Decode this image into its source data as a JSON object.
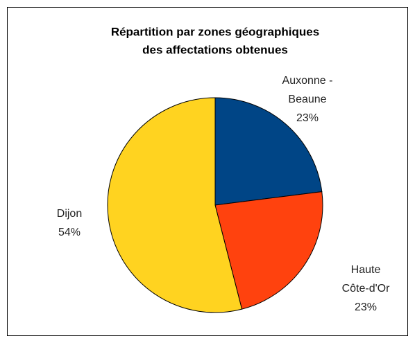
{
  "chart_data": {
    "type": "pie",
    "title": [
      "Répartition par zones géographiques",
      "des affectations obtenues"
    ],
    "categories": [
      [
        "Auxonne -",
        "Beaune"
      ],
      [
        "Haute",
        "Côte-d'Or"
      ],
      [
        "Dijon"
      ]
    ],
    "values": [
      23,
      23,
      54
    ],
    "value_labels": [
      "23%",
      "23%",
      "54%"
    ],
    "colors": [
      "#004586",
      "#ff420e",
      "#ffd320"
    ]
  }
}
